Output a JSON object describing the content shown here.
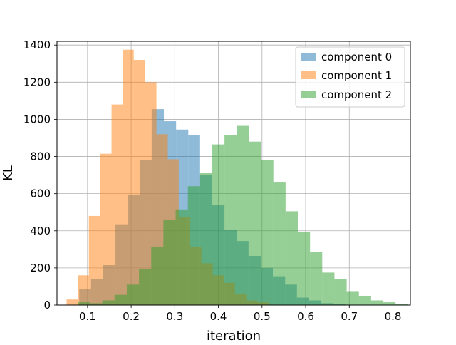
{
  "chart_data": {
    "type": "bar",
    "subtype": "overlapping-histogram",
    "title": "",
    "xlabel": "iteration",
    "ylabel": "KL",
    "xlim": [
      0.03,
      0.84
    ],
    "ylim": [
      0,
      1420
    ],
    "xticks": [
      0.1,
      0.2,
      0.3,
      0.4,
      0.5,
      0.6,
      0.7,
      0.8
    ],
    "xtick_labels": [
      "0.1",
      "0.2",
      "0.3",
      "0.4",
      "0.5",
      "0.6",
      "0.7",
      "0.8"
    ],
    "yticks": [
      0,
      200,
      400,
      600,
      800,
      1000,
      1200,
      1400
    ],
    "ytick_labels": [
      "0",
      "200",
      "400",
      "600",
      "800",
      "1000",
      "1200",
      "1400"
    ],
    "grid": true,
    "legend_position": "top-right",
    "alpha": 0.5,
    "series": [
      {
        "name": "component 0",
        "color": "#1f77b4",
        "bins": [
          [
            0.081,
            0.108,
            85
          ],
          [
            0.108,
            0.136,
            140
          ],
          [
            0.136,
            0.164,
            215
          ],
          [
            0.164,
            0.192,
            435
          ],
          [
            0.192,
            0.22,
            595
          ],
          [
            0.22,
            0.247,
            780
          ],
          [
            0.247,
            0.275,
            1055
          ],
          [
            0.275,
            0.303,
            990
          ],
          [
            0.303,
            0.331,
            945
          ],
          [
            0.331,
            0.358,
            915
          ],
          [
            0.358,
            0.386,
            700
          ],
          [
            0.386,
            0.414,
            540
          ],
          [
            0.414,
            0.442,
            405
          ],
          [
            0.442,
            0.469,
            345
          ],
          [
            0.469,
            0.497,
            265
          ],
          [
            0.497,
            0.525,
            200
          ],
          [
            0.525,
            0.553,
            155
          ],
          [
            0.553,
            0.58,
            110
          ],
          [
            0.58,
            0.608,
            40
          ],
          [
            0.608,
            0.636,
            25
          ],
          [
            0.636,
            0.664,
            10
          ],
          [
            0.664,
            0.691,
            5
          ]
        ]
      },
      {
        "name": "component 1",
        "color": "#ff7f0e",
        "bins": [
          [
            0.052,
            0.078,
            30
          ],
          [
            0.078,
            0.103,
            160
          ],
          [
            0.103,
            0.129,
            480
          ],
          [
            0.129,
            0.155,
            815
          ],
          [
            0.155,
            0.181,
            1080
          ],
          [
            0.181,
            0.206,
            1375
          ],
          [
            0.206,
            0.232,
            1320
          ],
          [
            0.232,
            0.258,
            1200
          ],
          [
            0.258,
            0.284,
            920
          ],
          [
            0.284,
            0.309,
            785
          ],
          [
            0.309,
            0.335,
            475
          ],
          [
            0.335,
            0.361,
            315
          ],
          [
            0.361,
            0.387,
            225
          ],
          [
            0.387,
            0.412,
            160
          ],
          [
            0.412,
            0.438,
            120
          ],
          [
            0.438,
            0.464,
            60
          ],
          [
            0.464,
            0.489,
            25
          ],
          [
            0.489,
            0.515,
            15
          ]
        ]
      },
      {
        "name": "component 2",
        "color": "#2ca02c",
        "bins": [
          [
            0.078,
            0.106,
            15
          ],
          [
            0.106,
            0.134,
            10
          ],
          [
            0.134,
            0.162,
            25
          ],
          [
            0.162,
            0.19,
            55
          ],
          [
            0.19,
            0.218,
            110
          ],
          [
            0.218,
            0.246,
            195
          ],
          [
            0.246,
            0.274,
            315
          ],
          [
            0.274,
            0.302,
            460
          ],
          [
            0.302,
            0.33,
            515
          ],
          [
            0.33,
            0.358,
            640
          ],
          [
            0.358,
            0.386,
            710
          ],
          [
            0.386,
            0.414,
            865
          ],
          [
            0.414,
            0.442,
            915
          ],
          [
            0.442,
            0.47,
            965
          ],
          [
            0.47,
            0.498,
            880
          ],
          [
            0.498,
            0.526,
            780
          ],
          [
            0.526,
            0.554,
            660
          ],
          [
            0.554,
            0.582,
            505
          ],
          [
            0.582,
            0.61,
            395
          ],
          [
            0.61,
            0.638,
            285
          ],
          [
            0.638,
            0.666,
            175
          ],
          [
            0.666,
            0.694,
            140
          ],
          [
            0.694,
            0.722,
            75
          ],
          [
            0.722,
            0.75,
            50
          ],
          [
            0.75,
            0.778,
            25
          ],
          [
            0.778,
            0.806,
            15
          ],
          [
            0.806,
            0.834,
            5
          ]
        ]
      }
    ]
  }
}
